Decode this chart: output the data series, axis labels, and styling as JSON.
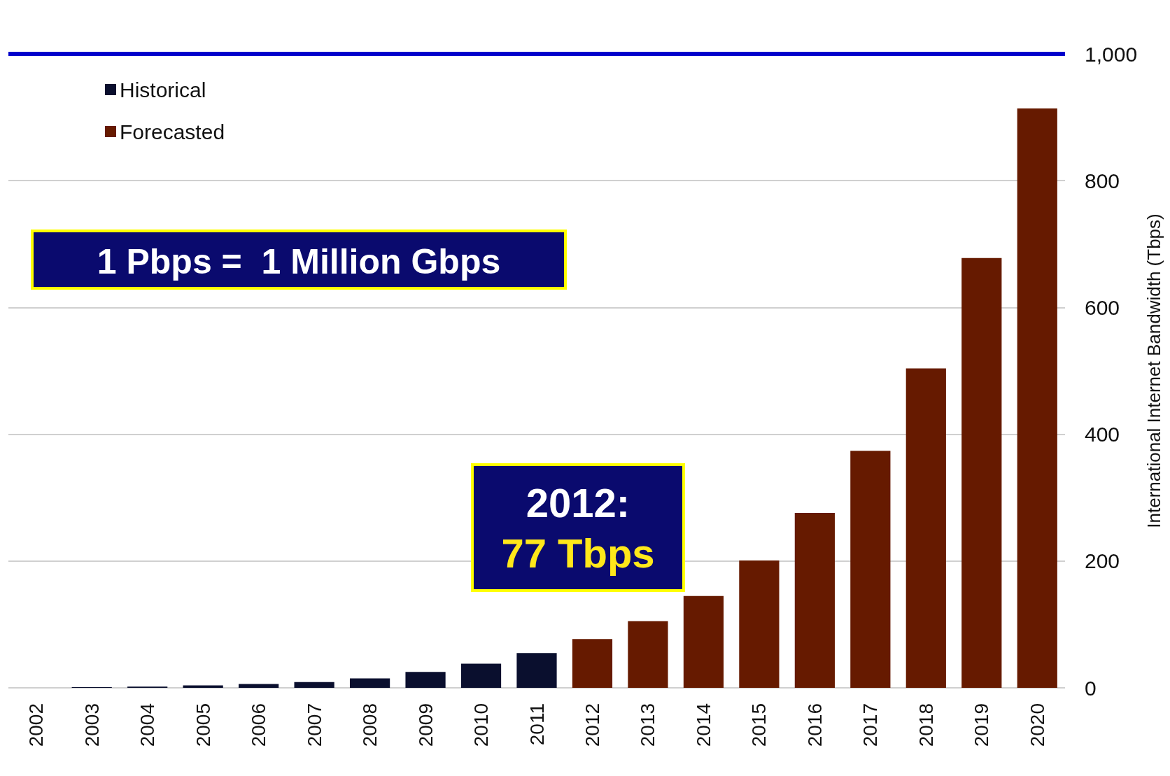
{
  "chart_data": {
    "type": "bar",
    "ylabel": "International Internet Bandwidth (Tbps)",
    "categories": [
      "2002",
      "2003",
      "2004",
      "2005",
      "2006",
      "2007",
      "2008",
      "2009",
      "2010",
      "2011",
      "2012",
      "2013",
      "2014",
      "2015",
      "2016",
      "2017",
      "2018",
      "2019",
      "2020"
    ],
    "series": [
      {
        "name": "Historical",
        "color": "#0a0f2e",
        "values": [
          0,
          1,
          2,
          4,
          6,
          9,
          15,
          25,
          38,
          55,
          null,
          null,
          null,
          null,
          null,
          null,
          null,
          null,
          null
        ]
      },
      {
        "name": "Forecasted",
        "color": "#661a00",
        "values": [
          null,
          null,
          null,
          null,
          null,
          null,
          null,
          null,
          null,
          null,
          77,
          105,
          145,
          201,
          276,
          374,
          504,
          678,
          914
        ]
      }
    ],
    "ylim": [
      0,
      1000
    ],
    "yticks": [
      0,
      200,
      400,
      600,
      800,
      {
        "value": 1000,
        "label": "1,000"
      }
    ],
    "grid": "y",
    "legend": "top left",
    "ref_lines": [
      {
        "axis": "y",
        "value": 1000,
        "color": "#0000cc"
      }
    ],
    "annotations": [
      "1 Pbps =  1 Million Gbps",
      "2012:",
      "77 Tbps"
    ]
  }
}
